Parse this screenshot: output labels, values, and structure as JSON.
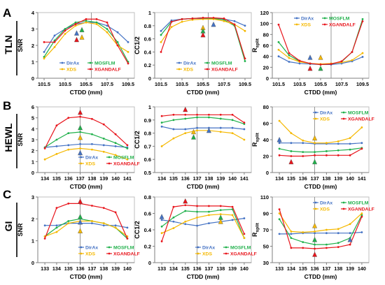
{
  "colors": {
    "DirAx": "#4472c4",
    "MOSFLM": "#1fb04a",
    "XDS": "#f5b800",
    "XGANDALF": "#e8141b"
  },
  "rows": [
    {
      "letter": "A",
      "name": "TLN"
    },
    {
      "letter": "B",
      "name": "HEWL"
    },
    {
      "letter": "C",
      "name": "GI"
    }
  ],
  "chart_data": [
    {
      "type": "line",
      "row": 0,
      "col": 0,
      "ylabel": "SNR",
      "xlabel": "CTDD (mm)",
      "x": [
        101.5,
        102.5,
        103.5,
        104.5,
        105.5,
        106.5,
        107.5,
        108.5,
        109.5
      ],
      "xticks": [
        101.5,
        103.5,
        105.5,
        107.5,
        109.5
      ],
      "ylim": [
        0,
        4
      ],
      "yticks": [
        0,
        1,
        2,
        3,
        4
      ],
      "vline": 106,
      "legend": "lower-center",
      "series": [
        {
          "name": "DirAx",
          "values": [
            1.6,
            2.6,
            3.0,
            3.3,
            3.4,
            3.4,
            3.2,
            2.8,
            2.2
          ]
        },
        {
          "name": "MOSFLM",
          "values": [
            1.3,
            2.3,
            3.0,
            3.4,
            3.5,
            3.4,
            3.0,
            2.2,
            1.0
          ]
        },
        {
          "name": "XDS",
          "values": [
            1.2,
            1.9,
            2.7,
            3.2,
            3.4,
            3.3,
            2.8,
            2.0,
            1.6
          ]
        },
        {
          "name": "XGANDALF",
          "values": [
            2.2,
            2.2,
            2.9,
            3.3,
            3.6,
            3.6,
            3.4,
            2.0,
            0.9
          ]
        }
      ],
      "markers": [
        {
          "series": "DirAx",
          "x": 104.6,
          "y": 2.75
        },
        {
          "series": "MOSFLM",
          "x": 105.1,
          "y": 2.95
        },
        {
          "series": "XDS",
          "x": 105.1,
          "y": 2.5
        },
        {
          "series": "XGANDALF",
          "x": 104.6,
          "y": 2.35
        }
      ]
    },
    {
      "type": "line",
      "row": 0,
      "col": 1,
      "ylabel": "CC1/2",
      "xlabel": "CTDD (mm)",
      "x": [
        101.5,
        102.5,
        103.5,
        104.5,
        105.5,
        106.5,
        107.5,
        108.5,
        109.5
      ],
      "xticks": [
        101.5,
        103.5,
        105.5,
        107.5,
        109.5
      ],
      "ylim": [
        0,
        1
      ],
      "yticks": [
        0,
        0.2,
        0.4,
        0.6,
        0.8,
        1
      ],
      "vline": 106,
      "legend": "lower-center",
      "series": [
        {
          "name": "DirAx",
          "values": [
            0.72,
            0.88,
            0.9,
            0.91,
            0.91,
            0.91,
            0.9,
            0.87,
            0.8
          ]
        },
        {
          "name": "MOSFLM",
          "values": [
            0.66,
            0.86,
            0.9,
            0.91,
            0.92,
            0.91,
            0.89,
            0.8,
            0.26
          ]
        },
        {
          "name": "XDS",
          "values": [
            0.55,
            0.78,
            0.86,
            0.89,
            0.9,
            0.9,
            0.87,
            0.82,
            0.72
          ]
        },
        {
          "name": "XGANDALF",
          "values": [
            0.4,
            0.86,
            0.9,
            0.91,
            0.92,
            0.92,
            0.91,
            0.82,
            0.3
          ]
        }
      ],
      "markers": [
        {
          "series": "XDS",
          "x": 105.5,
          "y": 0.77
        },
        {
          "series": "MOSFLM",
          "x": 105.5,
          "y": 0.72
        },
        {
          "series": "XGANDALF",
          "x": 105.5,
          "y": 0.66
        },
        {
          "series": "DirAx",
          "x": 106.5,
          "y": 0.82
        }
      ]
    },
    {
      "type": "line",
      "row": 0,
      "col": 2,
      "ylabel": "R",
      "ysub": "split",
      "xlabel": "CTDD (mm)",
      "x": [
        101.5,
        102.5,
        103.5,
        104.5,
        105.5,
        106.5,
        107.5,
        108.5,
        109.5
      ],
      "xticks": [
        101.5,
        103.5,
        105.5,
        107.5,
        109.5
      ],
      "ylim": [
        0,
        120
      ],
      "yticks": [
        0,
        20,
        40,
        60,
        80,
        100,
        120
      ],
      "vline": 106.5,
      "legend": "top-center",
      "series": [
        {
          "name": "DirAx",
          "values": [
            40,
            30,
            27,
            26,
            25,
            25,
            27,
            31,
            39
          ]
        },
        {
          "name": "MOSFLM",
          "values": [
            66,
            42,
            31,
            27,
            25,
            26,
            30,
            48,
            108
          ]
        },
        {
          "name": "XDS",
          "values": [
            52,
            37,
            30,
            27,
            26,
            27,
            29,
            33,
            46
          ]
        },
        {
          "name": "XGANDALF",
          "values": [
            98,
            46,
            32,
            27,
            25,
            26,
            31,
            48,
            104
          ]
        }
      ],
      "markers": [
        {
          "series": "DirAx",
          "x": 104.5,
          "y": 38
        },
        {
          "series": "XDS",
          "x": 105.5,
          "y": 38
        },
        {
          "series": "XGANDALF",
          "x": 104.5,
          "y": 18
        },
        {
          "series": "MOSFLM",
          "x": 105.5,
          "y": 18
        }
      ]
    },
    {
      "type": "line",
      "row": 1,
      "col": 0,
      "ylabel": "SNR",
      "xlabel": "CTDD (mm)",
      "x": [
        134,
        135,
        136,
        137,
        138,
        139,
        140,
        141
      ],
      "xticks": [
        134,
        135,
        136,
        137,
        138,
        139,
        140,
        141
      ],
      "ylim": [
        0,
        6
      ],
      "yticks": [
        0,
        1,
        2,
        3,
        4,
        5,
        6
      ],
      "vline": 137,
      "legend": "lower-right",
      "series": [
        {
          "name": "DirAx",
          "values": [
            2.3,
            2.4,
            2.5,
            2.6,
            2.6,
            2.5,
            2.4,
            2.3
          ]
        },
        {
          "name": "MOSFLM",
          "values": [
            2.3,
            3.0,
            3.6,
            3.7,
            3.5,
            3.1,
            2.7,
            2.2
          ]
        },
        {
          "name": "XDS",
          "values": [
            1.2,
            1.7,
            2.1,
            2.2,
            2.1,
            1.9,
            1.6,
            1.2
          ]
        },
        {
          "name": "XGANDALF",
          "values": [
            2.2,
            4.3,
            5.0,
            5.1,
            4.9,
            4.4,
            3.5,
            2.5
          ]
        }
      ],
      "markers": [
        {
          "series": "XGANDALF",
          "x": 137,
          "y": 5.5
        },
        {
          "series": "MOSFLM",
          "x": 137,
          "y": 4.1
        },
        {
          "series": "XDS",
          "x": 137,
          "y": 3.2
        },
        {
          "series": "DirAx",
          "x": 137,
          "y": 1.8
        }
      ]
    },
    {
      "type": "line",
      "row": 1,
      "col": 1,
      "ylabel": "CC1/2",
      "xlabel": "CTDD (mm)",
      "x": [
        134,
        135,
        136,
        137,
        138,
        139,
        140,
        141
      ],
      "xticks": [
        134,
        135,
        136,
        137,
        138,
        139,
        140,
        141
      ],
      "ylim": [
        0.5,
        1
      ],
      "yticks": [
        0.5,
        0.6,
        0.7,
        0.8,
        0.9,
        1
      ],
      "vline": 137,
      "legend": "none",
      "series": [
        {
          "name": "DirAx",
          "values": [
            0.85,
            0.83,
            0.83,
            0.84,
            0.84,
            0.84,
            0.84,
            0.83
          ]
        },
        {
          "name": "MOSFLM",
          "values": [
            0.88,
            0.9,
            0.91,
            0.92,
            0.92,
            0.91,
            0.9,
            0.87
          ]
        },
        {
          "name": "XDS",
          "values": [
            0.7,
            0.76,
            0.8,
            0.82,
            0.82,
            0.81,
            0.8,
            0.75
          ]
        },
        {
          "name": "XGANDALF",
          "values": [
            0.93,
            0.94,
            0.94,
            0.94,
            0.94,
            0.94,
            0.94,
            0.88
          ]
        }
      ],
      "markers": [
        {
          "series": "XGANDALF",
          "x": 136,
          "y": 0.98
        },
        {
          "series": "DirAx",
          "x": 138,
          "y": 0.82
        },
        {
          "series": "XDS",
          "x": 136.7,
          "y": 0.81
        },
        {
          "series": "MOSFLM",
          "x": 136.7,
          "y": 0.77
        }
      ]
    },
    {
      "type": "line",
      "row": 1,
      "col": 2,
      "ylabel": "R",
      "ysub": "split",
      "xlabel": "CTDD (mm)",
      "x": [
        134,
        135,
        136,
        137,
        138,
        139,
        140,
        141
      ],
      "xticks": [
        134,
        135,
        136,
        137,
        138,
        139,
        140,
        141
      ],
      "ylim": [
        0,
        80
      ],
      "yticks": [
        0,
        20,
        40,
        60,
        80
      ],
      "vline": 137,
      "legend": "top-right",
      "series": [
        {
          "name": "DirAx",
          "values": [
            36,
            36,
            36,
            35,
            35,
            35,
            35,
            36
          ]
        },
        {
          "name": "MOSFLM",
          "values": [
            29,
            26,
            25,
            25,
            26,
            27,
            28,
            30
          ]
        },
        {
          "name": "XDS",
          "values": [
            63,
            48,
            39,
            36,
            36,
            38,
            42,
            55
          ]
        },
        {
          "name": "XGANDALF",
          "values": [
            21,
            20,
            20,
            21,
            21,
            21,
            21,
            29
          ]
        }
      ],
      "markers": [
        {
          "series": "DirAx",
          "x": 134,
          "y": 40
        },
        {
          "series": "XDS",
          "x": 137,
          "y": 42
        },
        {
          "series": "XGANDALF",
          "x": 135,
          "y": 13
        },
        {
          "series": "MOSFLM",
          "x": 137,
          "y": 13
        }
      ]
    },
    {
      "type": "line",
      "row": 2,
      "col": 0,
      "ylabel": "SNR",
      "xlabel": "CTDD (mm)",
      "x": [
        133,
        134,
        135,
        136,
        137,
        138,
        139,
        140
      ],
      "xticks": [
        133,
        134,
        135,
        136,
        137,
        138,
        139,
        140
      ],
      "ylim": [
        0,
        3
      ],
      "yticks": [
        0,
        1,
        2,
        3
      ],
      "vline": 136,
      "legend": "lower-right",
      "series": [
        {
          "name": "DirAx",
          "values": [
            1.7,
            1.7,
            1.8,
            1.8,
            1.8,
            1.7,
            1.7,
            1.6
          ]
        },
        {
          "name": "MOSFLM",
          "values": [
            1.2,
            1.6,
            1.9,
            2.0,
            1.9,
            1.8,
            1.6,
            1.1
          ]
        },
        {
          "name": "XDS",
          "values": [
            1.2,
            1.4,
            1.8,
            1.9,
            1.9,
            1.8,
            1.6,
            1.2
          ]
        },
        {
          "name": "XGANDALF",
          "values": [
            1.1,
            2.5,
            2.7,
            2.7,
            2.6,
            2.5,
            2.3,
            1.1
          ]
        }
      ],
      "markers": [
        {
          "series": "XGANDALF",
          "x": 136,
          "y": 2.8
        },
        {
          "series": "MOSFLM",
          "x": 136,
          "y": 2.1
        },
        {
          "series": "DirAx",
          "x": 136,
          "y": 1.85
        },
        {
          "series": "XDS",
          "x": 136,
          "y": 1.45
        }
      ]
    },
    {
      "type": "line",
      "row": 2,
      "col": 1,
      "ylabel": "CC1/2",
      "xlabel": "CTDD (mm)",
      "x": [
        133,
        134,
        135,
        136,
        137,
        138,
        139,
        140
      ],
      "xticks": [
        133,
        134,
        135,
        136,
        137,
        138,
        139,
        140
      ],
      "ylim": [
        0,
        0.8
      ],
      "yticks": [
        0,
        0.2,
        0.4,
        0.6,
        0.8
      ],
      "vline": 136,
      "legend": "lower-right",
      "series": [
        {
          "name": "DirAx",
          "values": [
            0.52,
            0.5,
            0.47,
            0.45,
            0.48,
            0.5,
            0.52,
            0.54
          ]
        },
        {
          "name": "MOSFLM",
          "values": [
            0.44,
            0.55,
            0.63,
            0.62,
            0.62,
            0.64,
            0.65,
            0.3
          ]
        },
        {
          "name": "XDS",
          "values": [
            0.36,
            0.42,
            0.5,
            0.55,
            0.58,
            0.59,
            0.58,
            0.3
          ]
        },
        {
          "name": "XGANDALF",
          "values": [
            0.26,
            0.68,
            0.7,
            0.69,
            0.69,
            0.69,
            0.68,
            0.35
          ]
        }
      ],
      "markers": [
        {
          "series": "DirAx",
          "x": 133,
          "y": 0.56
        },
        {
          "series": "XGANDALF",
          "x": 135,
          "y": 0.75
        },
        {
          "series": "MOSFLM",
          "x": 138,
          "y": 0.55
        },
        {
          "series": "XDS",
          "x": 138,
          "y": 0.5
        }
      ]
    },
    {
      "type": "line",
      "row": 2,
      "col": 2,
      "ylabel": "R",
      "ysub": "split",
      "xlabel": "CTDD (mm)",
      "x": [
        133,
        134,
        135,
        136,
        137,
        138,
        139,
        140
      ],
      "xticks": [
        133,
        134,
        135,
        136,
        137,
        138,
        139,
        140
      ],
      "ylim": [
        30,
        110
      ],
      "yticks": [
        30,
        50,
        70,
        90,
        110
      ],
      "vline": 136,
      "legend": "top-right",
      "series": [
        {
          "name": "DirAx",
          "values": [
            65,
            65,
            66,
            66,
            66,
            66,
            66,
            67
          ]
        },
        {
          "name": "MOSFLM",
          "values": [
            83,
            60,
            55,
            52,
            52,
            54,
            60,
            88
          ]
        },
        {
          "name": "XDS",
          "values": [
            90,
            68,
            67,
            68,
            70,
            71,
            77,
            90
          ]
        },
        {
          "name": "XGANDALF",
          "values": [
            95,
            48,
            48,
            47,
            48,
            49,
            52,
            86
          ]
        }
      ],
      "markers": [
        {
          "series": "XDS",
          "x": 136,
          "y": 75
        },
        {
          "series": "MOSFLM",
          "x": 136,
          "y": 58
        },
        {
          "series": "XGANDALF",
          "x": 136,
          "y": 40
        },
        {
          "series": "DirAx",
          "x": 139,
          "y": 58
        }
      ]
    }
  ]
}
